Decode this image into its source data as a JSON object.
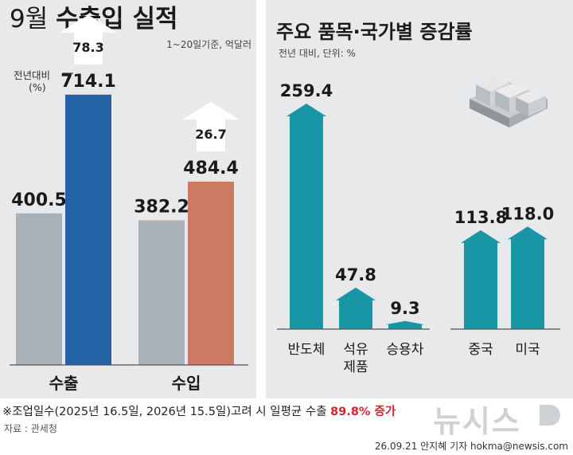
{
  "left_chart": {
    "title_prefix": "9월",
    "title_main": "수출입 실적",
    "unit": "1~20일기준, 억달러",
    "yoy_label_line1": "전년대비",
    "yoy_label_line2": "(%)",
    "colors": {
      "prev": "#a9b2b8",
      "export": "#2462a6",
      "import": "#cc7a62",
      "arrow": "#ffffff"
    }
  },
  "right_chart": {
    "title": "주요 품목·국가별 증감률",
    "subtitle": "전년 대비, 단위: %",
    "colors": {
      "bar": "#1896a6"
    }
  },
  "chart_data": [
    {
      "type": "bar",
      "title": "9월 수출입 실적",
      "subtitle": "1~20일기준, 억달러",
      "categories": [
        "수출",
        "수입"
      ],
      "series": [
        {
          "values": [
            400.5,
            382.2
          ]
        },
        {
          "values": [
            714.1,
            484.4
          ]
        }
      ],
      "yoy": {
        "label": "전년대비 (%)",
        "values": [
          78.3,
          26.7
        ]
      },
      "ylim": [
        0,
        800
      ],
      "grid": false
    },
    {
      "type": "bar",
      "title": "주요 품목·국가별 증감률",
      "subtitle": "전년 대비, 단위: %",
      "categories": [
        "반도체",
        "석유제품",
        "승용차",
        "중국",
        "미국"
      ],
      "category_lines": [
        [
          "반도체"
        ],
        [
          "석유",
          "제품"
        ],
        [
          "승용차"
        ],
        [
          "중국"
        ],
        [
          "미국"
        ]
      ],
      "values": [
        259.4,
        47.8,
        9.3,
        113.8,
        118.0
      ],
      "groups": [
        "품목",
        "품목",
        "품목",
        "국가",
        "국가"
      ],
      "ylim": [
        0,
        280
      ],
      "grid": false
    }
  ],
  "footer": {
    "note_main": "※조업일수(2025년 16.5일, 2026년 15.5일)고려 시 일평균 수출",
    "note_highlight": "89.8% 증가",
    "source": "자료 : 관세청",
    "credit": "26.09.21 안지혜 기자 hokma@newsis.com",
    "logo_text": "뉴시스"
  }
}
